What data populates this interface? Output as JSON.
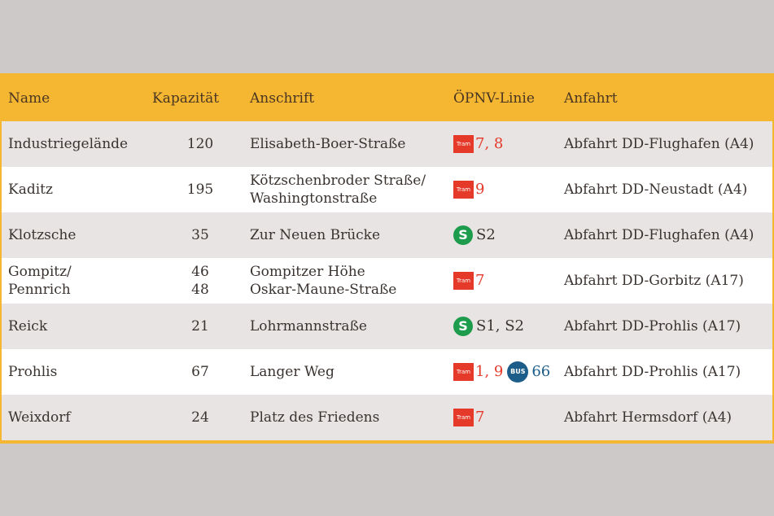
{
  "header": {
    "name": "Name",
    "kapazitaet": "Kapazität",
    "anschrift": "Anschrift",
    "oepnv": "ÖPNV-Linie",
    "anfahrt": "Anfahrt"
  },
  "badges": {
    "tram": "Tram",
    "s": "S",
    "bus": "BUS"
  },
  "colors": {
    "header_bg": "#f5b731",
    "tram_red": "#e5392a",
    "s_green": "#1e9c4d",
    "bus_blue": "#1d5d8a"
  },
  "rows": [
    {
      "name": "Industriegelände",
      "kap": "120",
      "anschrift": "Elisabeth-Boer-Straße",
      "lines": "7, 8",
      "anfahrt": "Abfahrt DD-Flughafen (A4)"
    },
    {
      "name": "Kaditz",
      "kap": "195",
      "anschrift_1": "Kötzschenbroder Straße/",
      "anschrift_2": "Washingtonstraße",
      "lines": "9",
      "anfahrt": "Abfahrt DD-Neustadt (A4)"
    },
    {
      "name": "Klotzsche",
      "kap": "35",
      "anschrift": "Zur Neuen Brücke",
      "lines": "S2",
      "anfahrt": "Abfahrt DD-Flughafen (A4)"
    },
    {
      "name_1": "Gompitz/",
      "name_2": "Pennrich",
      "kap_1": "46",
      "kap_2": "48",
      "anschrift_1": "Gompitzer Höhe",
      "anschrift_2": "Oskar-Maune-Straße",
      "lines": "7",
      "anfahrt": "Abfahrt DD-Gorbitz (A17)"
    },
    {
      "name": "Reick",
      "kap": "21",
      "anschrift": "Lohrmannstraße",
      "lines": "S1, S2",
      "anfahrt": "Abfahrt DD-Prohlis (A17)"
    },
    {
      "name": "Prohlis",
      "kap": "67",
      "anschrift": "Langer Weg",
      "lines": "1, 9",
      "bus_lines": "66",
      "anfahrt": "Abfahrt DD-Prohlis (A17)"
    },
    {
      "name": "Weixdorf",
      "kap": "24",
      "anschrift": "Platz des Friedens",
      "lines": "7",
      "anfahrt": "Abfahrt Hermsdorf (A4)"
    }
  ]
}
